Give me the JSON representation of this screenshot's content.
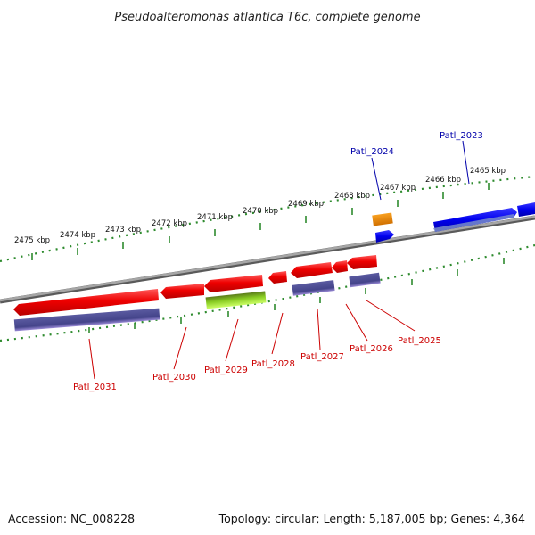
{
  "header": {
    "title": "Pseudoalteromonas atlantica T6c, complete genome"
  },
  "footer": {
    "accession": "Accession: NC_008228",
    "summary": "Topology: circular; Length: 5,187,005 bp; Genes: 4,364"
  },
  "colors": {
    "backbone": "#8a8a8a",
    "tick": "#2e8b2e",
    "forward_gene": "#0000ee",
    "reverse_gene": "#ee0000",
    "feature_purple": "#4a4a8c",
    "feature_green": "#88dd22",
    "feature_orange": "#f08c00",
    "forward_label": "#0000aa",
    "reverse_label": "#cc0000"
  },
  "scale": {
    "unit": "kbp",
    "ticks": [
      {
        "value": 2475,
        "label": "2475 kbp"
      },
      {
        "value": 2474,
        "label": "2474 kbp"
      },
      {
        "value": 2473,
        "label": "2473 kbp"
      },
      {
        "value": 2472,
        "label": "2472 kbp"
      },
      {
        "value": 2471,
        "label": "2471 kbp"
      },
      {
        "value": 2470,
        "label": "2470 kbp"
      },
      {
        "value": 2469,
        "label": "2469 kbp"
      },
      {
        "value": 2468,
        "label": "2468 kbp"
      },
      {
        "value": 2467,
        "label": "2467 kbp"
      },
      {
        "value": 2466,
        "label": "2466 kbp"
      },
      {
        "value": 2465,
        "label": "2465 kbp"
      }
    ]
  },
  "genes_forward": [
    {
      "id": "Patl_2024",
      "label": "Patl_2024"
    },
    {
      "id": "Patl_2023",
      "label": "Patl_2023"
    }
  ],
  "genes_reverse": [
    {
      "id": "Patl_2031",
      "label": "Patl_2031"
    },
    {
      "id": "Patl_2030",
      "label": "Patl_2030"
    },
    {
      "id": "Patl_2029",
      "label": "Patl_2029"
    },
    {
      "id": "Patl_2028",
      "label": "Patl_2028"
    },
    {
      "id": "Patl_2027",
      "label": "Patl_2027"
    },
    {
      "id": "Patl_2026",
      "label": "Patl_2026"
    },
    {
      "id": "Patl_2025",
      "label": "Patl_2025"
    }
  ]
}
